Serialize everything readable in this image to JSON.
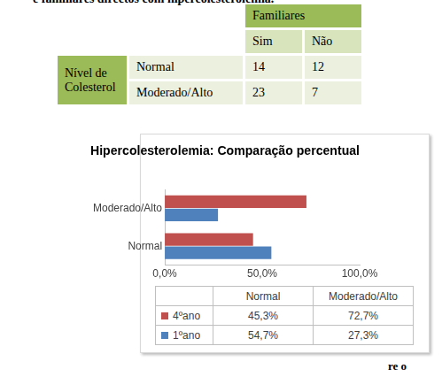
{
  "caption": "e familiares directos com hipercolesterolemia.",
  "table": {
    "column_group": "Familiares",
    "columns": [
      "Sim",
      "Não"
    ],
    "row_group": "Nível de Colesterol",
    "rows": [
      {
        "label": "Normal",
        "values": [
          14,
          12
        ]
      },
      {
        "label": "Moderado/Alto",
        "values": [
          23,
          7
        ]
      }
    ]
  },
  "chart_data": {
    "type": "bar",
    "title": "Hipercolesterolemia: Comparação percentual",
    "orientation": "horizontal",
    "categories": [
      "Normal",
      "Moderado/Alto"
    ],
    "series": [
      {
        "name": "4ºano",
        "color": "#c0504d",
        "values": [
          45.3,
          72.7
        ],
        "value_labels": [
          "45,3%",
          "72,7%"
        ]
      },
      {
        "name": "1ºano",
        "color": "#4f81bd",
        "values": [
          54.7,
          27.3
        ],
        "value_labels": [
          "54,7%",
          "27,3%"
        ]
      }
    ],
    "xlim": [
      0,
      100
    ],
    "xticks": [
      {
        "value": 0,
        "label": "0,0%"
      },
      {
        "value": 50,
        "label": "50,0%"
      },
      {
        "value": 100,
        "label": "100,0%"
      }
    ],
    "grid": false
  },
  "footer": "re o"
}
